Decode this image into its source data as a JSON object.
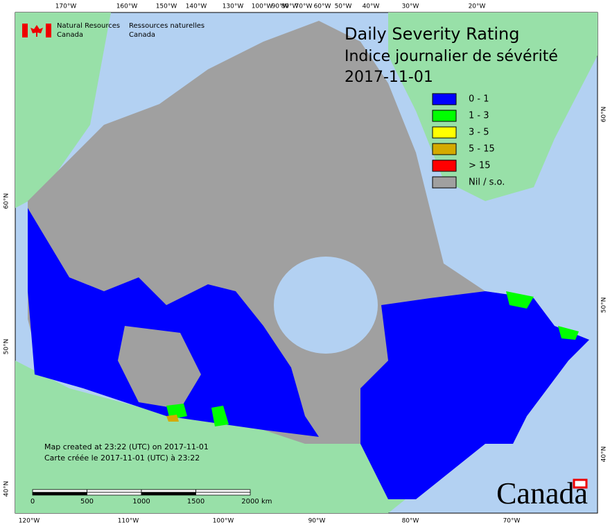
{
  "header": {
    "org_en": [
      "Natural Resources",
      "Canada"
    ],
    "org_fr": [
      "Ressources naturelles",
      "Canada"
    ]
  },
  "title": [
    "Daily Severity Rating",
    "Indice journalier de sévérité",
    "2017-11-01"
  ],
  "legend": [
    {
      "label": "0 - 1",
      "color": "#0000ff"
    },
    {
      "label": "1 - 3",
      "color": "#00ff00"
    },
    {
      "label": "3 - 5",
      "color": "#ffff00"
    },
    {
      "label": "5 - 15",
      "color": "#d4aa00"
    },
    {
      "label": "> 15",
      "color": "#ff0000"
    },
    {
      "label": "Nil / s.o.",
      "color": "#a0a0a0"
    }
  ],
  "graticule": {
    "top": [
      "170°W",
      "160°W",
      "150°W",
      "140°W",
      "130°W",
      "100°W",
      "90°W",
      "80°W",
      "70°W",
      "60°W",
      "50°W",
      "40°W",
      "30°W",
      "20°W"
    ],
    "bottom": [
      "120°W",
      "110°W",
      "100°W",
      "90°W",
      "80°W",
      "70°W"
    ],
    "left": [
      "60°N",
      "50°N",
      "40°N"
    ],
    "right": [
      "60°N",
      "50°N",
      "40°N"
    ]
  },
  "notes": [
    "Map created at 23:22 (UTC) on 2017-11-01",
    "Carte créée le 2017-11-01 (UTC) à 23:22"
  ],
  "scale_bar": {
    "labels": [
      "0",
      "500",
      "1000",
      "1500",
      "2000"
    ],
    "unit": "km"
  },
  "wordmark": "Canada"
}
